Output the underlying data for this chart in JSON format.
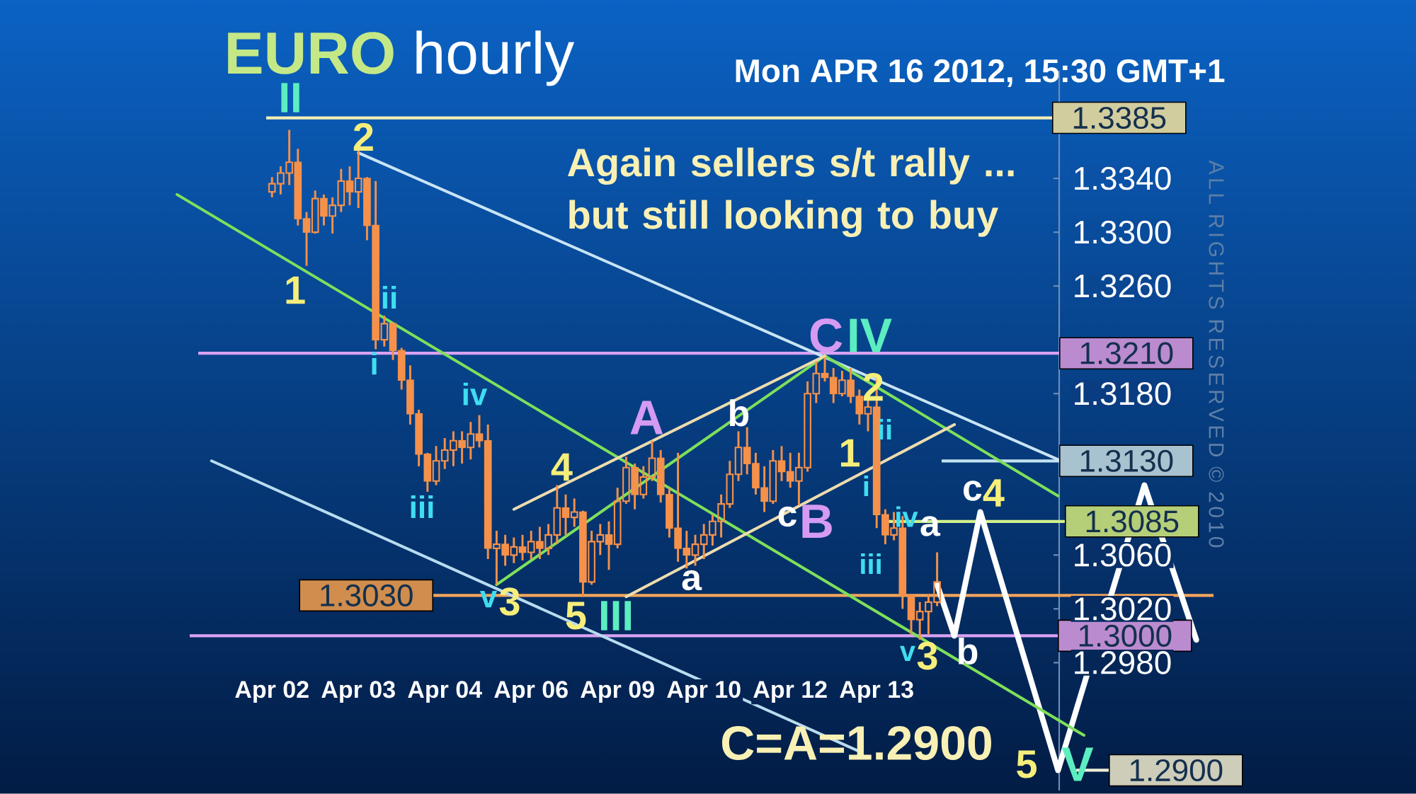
{
  "chart_data": {
    "type": "candlestick",
    "title": "**EURO** hourly",
    "subtitle": "Mon APR 16 2012, 15:30 GMT+1",
    "color": "#f5914a",
    "categories": [
      null,
      null,
      null,
      null,
      null,
      null,
      null,
      null,
      null,
      null,
      null,
      "Apr 02",
      null,
      null,
      null,
      null,
      null,
      null,
      null,
      null,
      null,
      "Apr 03",
      null,
      null,
      null,
      null,
      null,
      null,
      null,
      null,
      null,
      "Apr 04",
      null,
      null,
      null,
      null,
      null,
      null,
      null,
      null,
      null,
      "Apr 06",
      null,
      null,
      null,
      null,
      null,
      null,
      null,
      null,
      null,
      "Apr 09",
      null,
      null,
      null,
      null,
      null,
      null,
      null,
      null,
      null,
      "Apr 10",
      null,
      null,
      null,
      null,
      null,
      null,
      null,
      null,
      null,
      "Apr 12",
      null,
      null,
      null,
      null,
      null,
      null,
      null,
      null,
      null,
      "Apr 13",
      null,
      null,
      null,
      null,
      null,
      null,
      null,
      null,
      null,
      null,
      null,
      null,
      null,
      null,
      null,
      null,
      null,
      null,
      null,
      null,
      null,
      null,
      null,
      null,
      null,
      null,
      null,
      null,
      null,
      null,
      null,
      null,
      null,
      null,
      null,
      null,
      null,
      null,
      null
    ],
    "ohlc": [
      null,
      null,
      null,
      null,
      null,
      null,
      null,
      null,
      null,
      null,
      null,
      [
        1.333,
        1.3341,
        1.3326,
        1.3336
      ],
      [
        1.3336,
        1.3349,
        1.3328,
        1.3344
      ],
      [
        1.3344,
        1.3376,
        1.3335,
        1.3352
      ],
      [
        1.3352,
        1.3362,
        1.3305,
        1.331
      ],
      [
        1.331,
        1.3315,
        1.3275,
        1.33
      ],
      [
        1.33,
        1.3331,
        1.3299,
        1.3325
      ],
      [
        1.3325,
        1.3328,
        1.3305,
        1.3312
      ],
      [
        1.3312,
        1.3326,
        1.3299,
        1.332
      ],
      [
        1.332,
        1.3347,
        1.3315,
        1.3338
      ],
      [
        1.3338,
        1.3349,
        1.332,
        1.333
      ],
      [
        1.333,
        1.3361,
        1.3318,
        1.334
      ],
      [
        1.334,
        1.3341,
        1.3294,
        1.3305
      ],
      [
        1.3305,
        1.3338,
        1.3213,
        1.322
      ],
      [
        1.322,
        1.3238,
        1.3215,
        1.3232
      ],
      [
        1.3232,
        1.3233,
        1.3205,
        1.3212
      ],
      [
        1.3212,
        1.3214,
        1.3183,
        1.319
      ],
      [
        1.319,
        1.3201,
        1.3157,
        1.3165
      ],
      [
        1.3165,
        1.3168,
        1.3126,
        1.3135
      ],
      [
        1.3135,
        1.3136,
        1.3107,
        1.3115
      ],
      [
        1.3115,
        1.3141,
        1.3112,
        1.313
      ],
      [
        1.313,
        1.3147,
        1.3124,
        1.3138
      ],
      [
        1.3138,
        1.3152,
        1.3126,
        1.3145
      ],
      [
        1.3145,
        1.3152,
        1.3128,
        1.314
      ],
      [
        1.314,
        1.3159,
        1.3131,
        1.315
      ],
      [
        1.315,
        1.3164,
        1.314,
        1.3145
      ],
      [
        1.3145,
        1.3157,
        1.3057,
        1.3065
      ],
      [
        1.3065,
        1.3078,
        1.3038,
        1.3068
      ],
      [
        1.3068,
        1.3075,
        1.3052,
        1.306
      ],
      [
        1.306,
        1.3073,
        1.3054,
        1.3066
      ],
      [
        1.3066,
        1.3075,
        1.3056,
        1.3062
      ],
      [
        1.3062,
        1.3078,
        1.3057,
        1.307
      ],
      [
        1.307,
        1.3081,
        1.3057,
        1.3065
      ],
      [
        1.3065,
        1.3083,
        1.306,
        1.3075
      ],
      [
        1.3075,
        1.3112,
        1.3068,
        1.3095
      ],
      [
        1.3095,
        1.3105,
        1.3075,
        1.3088
      ],
      [
        1.3088,
        1.3102,
        1.3081,
        1.3092
      ],
      [
        1.3092,
        1.3093,
        1.3029,
        1.304
      ],
      [
        1.304,
        1.3078,
        1.3038,
        1.307
      ],
      [
        1.307,
        1.3083,
        1.306,
        1.3075
      ],
      [
        1.3075,
        1.3085,
        1.3049,
        1.3068
      ],
      [
        1.3068,
        1.311,
        1.3065,
        1.31
      ],
      [
        1.31,
        1.3133,
        1.3098,
        1.3125
      ],
      [
        1.3125,
        1.3128,
        1.3094,
        1.3105
      ],
      [
        1.3105,
        1.3126,
        1.3102,
        1.3118
      ],
      [
        1.3118,
        1.3145,
        1.3115,
        1.3132
      ],
      [
        1.3132,
        1.3138,
        1.3099,
        1.3105
      ],
      [
        1.3105,
        1.311,
        1.3073,
        1.308
      ],
      [
        1.308,
        1.3136,
        1.3055,
        1.3065
      ],
      [
        1.3065,
        1.3078,
        1.305,
        1.306
      ],
      [
        1.306,
        1.3075,
        1.3052,
        1.3068
      ],
      [
        1.3068,
        1.3083,
        1.3057,
        1.3075
      ],
      [
        1.3075,
        1.309,
        1.3067,
        1.3085
      ],
      [
        1.3085,
        1.3105,
        1.3073,
        1.3098
      ],
      [
        1.3098,
        1.313,
        1.3095,
        1.312
      ],
      [
        1.312,
        1.3152,
        1.3115,
        1.314
      ],
      [
        1.314,
        1.3155,
        1.312,
        1.3128
      ],
      [
        1.3128,
        1.3136,
        1.3105,
        1.311
      ],
      [
        1.311,
        1.3126,
        1.3092,
        1.31
      ],
      [
        1.31,
        1.3138,
        1.3098,
        1.313
      ],
      [
        1.313,
        1.3141,
        1.3115,
        1.3122
      ],
      [
        1.3122,
        1.3136,
        1.311,
        1.3115
      ],
      [
        1.3115,
        1.3136,
        1.3097,
        1.3125
      ],
      [
        1.3125,
        1.3189,
        1.3122,
        1.318
      ],
      [
        1.318,
        1.3204,
        1.3173,
        1.3195
      ],
      [
        1.3195,
        1.3207,
        1.3189,
        1.3192
      ],
      [
        1.3192,
        1.3199,
        1.3173,
        1.318
      ],
      [
        1.318,
        1.3197,
        1.3178,
        1.319
      ],
      [
        1.319,
        1.3199,
        1.3173,
        1.3178
      ],
      [
        1.3178,
        1.3183,
        1.3157,
        1.3165
      ],
      [
        1.3165,
        1.3178,
        1.3152,
        1.317
      ],
      [
        1.317,
        1.3194,
        1.308,
        1.309
      ],
      [
        1.309,
        1.3094,
        1.3068,
        1.3075
      ],
      [
        1.3075,
        1.3092,
        1.3071,
        1.308
      ],
      [
        1.308,
        1.3089,
        1.302,
        1.303
      ],
      [
        1.303,
        1.3031,
        1.3001,
        1.3012
      ],
      [
        1.3012,
        1.3025,
        1.2997,
        1.3018
      ],
      [
        1.3018,
        1.3031,
        1.3001,
        1.3025
      ],
      [
        1.3025,
        1.3062,
        1.3022,
        1.304
      ],
      null,
      null,
      null,
      null,
      null,
      null,
      null,
      null,
      null,
      null,
      null,
      null,
      null,
      null,
      null,
      null,
      null,
      null,
      null,
      null,
      null,
      null,
      null,
      null,
      null,
      null,
      null,
      null,
      null,
      null,
      null,
      null
    ],
    "series": [
      {
        "type": "line",
        "color": "#ffffff",
        "values": [
          null,
          null,
          null,
          null,
          null,
          null,
          null,
          null,
          null,
          null,
          null,
          null,
          null,
          null,
          null,
          null,
          null,
          null,
          null,
          null,
          null,
          null,
          null,
          null,
          null,
          null,
          null,
          null,
          null,
          null,
          null,
          null,
          null,
          null,
          null,
          null,
          null,
          null,
          null,
          null,
          null,
          null,
          null,
          null,
          null,
          null,
          null,
          null,
          null,
          null,
          null,
          null,
          null,
          null,
          null,
          null,
          null,
          null,
          null,
          null,
          null,
          null,
          null,
          null,
          null,
          null,
          null,
          null,
          null,
          null,
          null,
          null,
          null,
          null,
          null,
          null,
          null,
          null,
          null,
          null,
          null,
          null,
          null,
          null,
          null,
          null,
          null,
          null,
          1.3038,
          null,
          1.3,
          null,
          null,
          1.3092,
          null,
          null,
          null,
          null,
          null,
          null,
          null,
          null,
          1.29,
          null,
          null,
          null,
          null,
          null,
          null,
          null,
          null,
          null,
          1.3112,
          null,
          null,
          null,
          null,
          null,
          1.2997,
          null,
          null
        ]
      },
      {
        "type": "line",
        "color": "#7ee05a",
        "values": [
          1.3328,
          null,
          null,
          null,
          null,
          null,
          null,
          null,
          null,
          null,
          null,
          null,
          null,
          null,
          null,
          null,
          null,
          null,
          null,
          null,
          null,
          null,
          null,
          null,
          null,
          null,
          null,
          null,
          null,
          null,
          null,
          null,
          null,
          null,
          null,
          null,
          null,
          null,
          null,
          null,
          null,
          null,
          null,
          null,
          null,
          null,
          null,
          null,
          null,
          null,
          null,
          null,
          null,
          null,
          null,
          null,
          null,
          null,
          null,
          null,
          null,
          null,
          null,
          null,
          null,
          null,
          null,
          null,
          null,
          null,
          null,
          null,
          null,
          null,
          null,
          null,
          null,
          null,
          null,
          null,
          null,
          null,
          null,
          null,
          null,
          null,
          null,
          null,
          null,
          null,
          null,
          null,
          null,
          null,
          null,
          null,
          null,
          null,
          null,
          null,
          null,
          null,
          null,
          null,
          null,
          1.2926,
          null,
          null,
          null,
          null,
          null,
          null,
          null,
          null,
          null,
          null,
          null,
          null,
          null,
          null,
          null
        ]
      },
      {
        "type": "line",
        "color": "#c8e4f4",
        "values": [
          null,
          null,
          null,
          null,
          null,
          null,
          null,
          null,
          null,
          null,
          null,
          null,
          null,
          null,
          null,
          null,
          null,
          null,
          null,
          null,
          null,
          1.3359,
          null,
          null,
          null,
          null,
          null,
          null,
          null,
          null,
          null,
          null,
          null,
          null,
          null,
          null,
          null,
          null,
          null,
          null,
          null,
          null,
          null,
          null,
          null,
          null,
          null,
          null,
          null,
          null,
          null,
          null,
          null,
          null,
          null,
          null,
          null,
          null,
          null,
          null,
          null,
          null,
          null,
          null,
          null,
          null,
          null,
          null,
          null,
          null,
          null,
          null,
          null,
          null,
          null,
          null,
          null,
          null,
          null,
          null,
          null,
          null,
          null,
          null,
          null,
          null,
          null,
          null,
          null,
          null,
          null,
          null,
          null,
          null,
          null,
          null,
          null,
          null,
          null,
          null,
          null,
          null,
          1.3131,
          null,
          null,
          null,
          null,
          null,
          null,
          null,
          null,
          null,
          null,
          null,
          null,
          null,
          null,
          null,
          null,
          null,
          null
        ]
      },
      {
        "type": "line",
        "color": "#b8dcf0",
        "values": [
          null,
          null,
          null,
          null,
          1.313,
          null,
          null,
          null,
          null,
          null,
          null,
          null,
          null,
          null,
          null,
          null,
          null,
          null,
          null,
          null,
          null,
          null,
          null,
          null,
          null,
          null,
          null,
          null,
          null,
          null,
          null,
          null,
          null,
          null,
          null,
          null,
          null,
          null,
          null,
          null,
          null,
          null,
          null,
          null,
          null,
          null,
          null,
          null,
          null,
          null,
          null,
          null,
          null,
          null,
          null,
          null,
          null,
          null,
          null,
          null,
          null,
          null,
          null,
          null,
          null,
          null,
          null,
          null,
          null,
          null,
          null,
          null,
          null,
          null,
          null,
          null,
          null,
          null,
          null,
          1.2914,
          null,
          null,
          null,
          null,
          null,
          null,
          null,
          null,
          null,
          null,
          null,
          null,
          null,
          null,
          null,
          null,
          null,
          null,
          null,
          null,
          null,
          null,
          null,
          null,
          null,
          null,
          null,
          null,
          null,
          null,
          null,
          null,
          null,
          null,
          null,
          null,
          null,
          null,
          null,
          null,
          null
        ]
      },
      {
        "type": "line",
        "color": "#7ee05a",
        "values": [
          null,
          null,
          null,
          null,
          null,
          null,
          null,
          null,
          null,
          null,
          null,
          null,
          null,
          null,
          null,
          null,
          null,
          null,
          null,
          null,
          null,
          null,
          null,
          null,
          null,
          null,
          null,
          null,
          null,
          null,
          null,
          null,
          null,
          null,
          null,
          null,
          null,
          1.3038,
          null,
          null,
          null,
          null,
          null,
          null,
          null,
          null,
          null,
          null,
          null,
          null,
          null,
          null,
          null,
          null,
          null,
          null,
          null,
          null,
          null,
          null,
          null,
          null,
          null,
          null,
          null,
          null,
          null,
          null,
          null,
          null,
          null,
          null,
          null,
          null,
          null,
          1.3208,
          null,
          null,
          null,
          null,
          null,
          null,
          null,
          null,
          null,
          null,
          null,
          null,
          null,
          null,
          null,
          null,
          null,
          null,
          null,
          null,
          null,
          null,
          null,
          null,
          null,
          null,
          null,
          null,
          null,
          null,
          null,
          null,
          null,
          null,
          null,
          null,
          null,
          null,
          null,
          null,
          null,
          null,
          null,
          null,
          null
        ]
      },
      {
        "type": "line",
        "color": "#7ee05a",
        "values": [
          null,
          null,
          null,
          null,
          null,
          null,
          null,
          null,
          null,
          null,
          null,
          null,
          null,
          null,
          null,
          null,
          null,
          null,
          null,
          null,
          null,
          null,
          null,
          null,
          null,
          null,
          null,
          null,
          null,
          null,
          null,
          null,
          null,
          null,
          null,
          null,
          null,
          null,
          null,
          null,
          null,
          null,
          null,
          null,
          null,
          null,
          null,
          null,
          null,
          null,
          null,
          null,
          null,
          null,
          null,
          null,
          null,
          null,
          null,
          null,
          null,
          null,
          null,
          null,
          null,
          null,
          null,
          null,
          null,
          null,
          null,
          null,
          null,
          null,
          null,
          1.3208,
          null,
          null,
          null,
          null,
          null,
          null,
          null,
          null,
          null,
          null,
          null,
          null,
          null,
          null,
          null,
          null,
          null,
          null,
          null,
          null,
          null,
          null,
          null,
          null,
          null,
          null,
          1.3104,
          null,
          null,
          null,
          null,
          null,
          null,
          null,
          null,
          null,
          null,
          null,
          null,
          null,
          null,
          null,
          null,
          null,
          null
        ]
      },
      {
        "type": "line",
        "color": "#eedcae",
        "values": [
          null,
          null,
          null,
          null,
          null,
          null,
          null,
          null,
          null,
          null,
          null,
          null,
          null,
          null,
          null,
          null,
          null,
          null,
          null,
          null,
          null,
          null,
          null,
          null,
          null,
          null,
          null,
          null,
          null,
          null,
          null,
          null,
          null,
          null,
          null,
          null,
          null,
          null,
          null,
          1.3094,
          null,
          null,
          null,
          null,
          null,
          null,
          null,
          null,
          null,
          null,
          null,
          null,
          null,
          null,
          null,
          null,
          null,
          null,
          null,
          null,
          null,
          null,
          null,
          null,
          null,
          null,
          null,
          null,
          null,
          null,
          null,
          null,
          null,
          null,
          null,
          1.3208,
          null,
          null,
          null,
          null,
          null,
          null,
          null,
          null,
          null,
          null,
          null,
          null,
          null,
          null,
          null,
          null,
          null,
          null,
          null,
          null,
          null,
          null,
          null,
          null,
          null,
          null,
          null,
          null,
          null,
          null,
          null,
          null,
          null,
          null,
          null,
          null,
          null,
          null,
          null,
          null,
          null,
          null,
          null,
          null,
          null
        ]
      },
      {
        "type": "line",
        "color": "#eedcae",
        "values": [
          null,
          null,
          null,
          null,
          null,
          null,
          null,
          null,
          null,
          null,
          null,
          null,
          null,
          null,
          null,
          null,
          null,
          null,
          null,
          null,
          null,
          null,
          null,
          null,
          null,
          null,
          null,
          null,
          null,
          null,
          null,
          null,
          null,
          null,
          null,
          null,
          null,
          null,
          null,
          null,
          null,
          null,
          null,
          null,
          null,
          null,
          null,
          null,
          null,
          null,
          null,
          null,
          1.3029,
          null,
          null,
          null,
          null,
          null,
          null,
          null,
          null,
          null,
          null,
          null,
          null,
          null,
          null,
          null,
          null,
          null,
          null,
          null,
          null,
          null,
          null,
          null,
          null,
          null,
          null,
          null,
          null,
          null,
          null,
          null,
          null,
          null,
          null,
          null,
          null,
          null,
          1.3157,
          null,
          null,
          null,
          null,
          null,
          null,
          null,
          null,
          null,
          null,
          null,
          null,
          null,
          null,
          null,
          null,
          null,
          null,
          null,
          null,
          null,
          null,
          null,
          null,
          null,
          null,
          null,
          null,
          null,
          null
        ]
      }
    ],
    "ylim": [
      1.2885,
      1.342
    ],
    "yticks": [
      {
        "value": 1.298,
        "label": "1.2980"
      },
      {
        "value": 1.302,
        "label": "1.3020"
      },
      {
        "value": 1.306,
        "label": "1.3060"
      },
      {
        "value": 1.318,
        "label": "1.3180"
      },
      {
        "value": 1.326,
        "label": "1.3260"
      },
      {
        "value": 1.33,
        "label": "1.3300"
      },
      {
        "value": 1.334,
        "label": "1.3340"
      }
    ],
    "ref_lines": [
      {
        "axis": "y",
        "value": 1.3385,
        "label": "1.3385",
        "color": "#f4eeb8"
      },
      {
        "axis": "y",
        "value": 1.321,
        "label": "1.3210",
        "color": "#d9a2f2"
      },
      {
        "axis": "y",
        "value": 1.313,
        "label": "1.3130",
        "color": "#c4e2f2"
      },
      {
        "axis": "y",
        "value": 1.3085,
        "label": "1.3085",
        "color": "#d2f08c"
      },
      {
        "axis": "y",
        "value": 1.303,
        "label": "1.3030",
        "color": "#f2a45a"
      },
      {
        "axis": "y",
        "value": 1.3,
        "label": "1.3000",
        "color": "#d9a2f2"
      },
      {
        "axis": "y",
        "value": 1.29,
        "label": "1.2900",
        "color": "#f0eed8"
      }
    ],
    "annotations": [
      "II",
      "2",
      "1",
      "ii",
      "i",
      "iv",
      "iii",
      {
        "text": "v",
        "y": 1.3038
      },
      "3",
      "4",
      "5",
      "III",
      "A",
      "a",
      "b",
      "c",
      "B",
      "C",
      "IV",
      "2",
      "ii",
      "1",
      "i",
      "iv",
      "a",
      "iii",
      "v",
      "3",
      "b",
      "c",
      "4",
      "5",
      "V",
      "C=A=1.2900",
      "Again sellers s/t rally ... but still looking to buy",
      "ALL RIGHTS RESERVED © 2010"
    ]
  }
}
